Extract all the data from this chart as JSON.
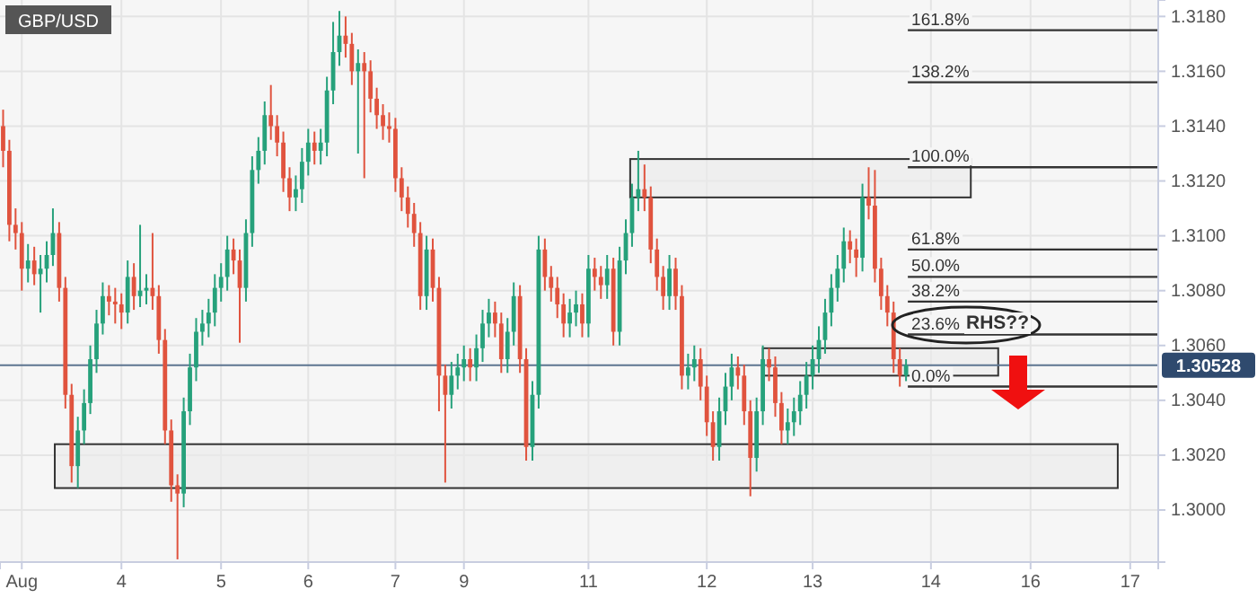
{
  "chart_data": {
    "type": "candlestick",
    "title": "GBP/USD",
    "annotations": [
      "161.8%",
      "138.2%",
      "100.0%",
      "61.8%",
      "50.0%",
      "38.2%",
      "23.6%",
      "0.0%",
      "RHS??"
    ],
    "categories": [
      null,
      null,
      null,
      "Aug",
      null,
      null,
      null,
      null,
      null,
      null,
      null,
      null,
      null,
      null,
      null,
      null,
      null,
      null,
      null,
      "4",
      null,
      null,
      null,
      null,
      null,
      null,
      null,
      null,
      null,
      null,
      null,
      null,
      null,
      null,
      null,
      "5",
      null,
      null,
      null,
      null,
      null,
      null,
      null,
      null,
      null,
      null,
      null,
      null,
      null,
      "6",
      null,
      null,
      null,
      null,
      null,
      null,
      null,
      null,
      null,
      null,
      null,
      null,
      null,
      "7",
      null,
      null,
      null,
      null,
      null,
      null,
      null,
      null,
      null,
      null,
      "9",
      null,
      null,
      null,
      null,
      null,
      null,
      null,
      null,
      null,
      null,
      null,
      null,
      null,
      null,
      null,
      null,
      null,
      null,
      null,
      "11",
      null,
      null,
      null,
      null,
      null,
      null,
      null,
      null,
      null,
      null,
      null,
      null,
      null,
      null,
      null,
      null,
      null,
      null,
      "12",
      null,
      null,
      null,
      null,
      null,
      null,
      null,
      null,
      null,
      null,
      null,
      null,
      null,
      null,
      null,
      null,
      "13",
      null,
      null,
      null,
      null,
      null,
      null,
      null,
      null,
      null,
      null,
      null,
      null,
      null,
      null,
      null,
      null,
      null,
      null,
      "14",
      null,
      null,
      null,
      null,
      null,
      null,
      null,
      null,
      null,
      null,
      null,
      null,
      null,
      null,
      null,
      "16",
      null,
      null,
      null,
      null,
      null,
      null,
      null,
      null,
      null,
      null,
      null,
      null,
      null,
      null,
      null,
      "17",
      null,
      null,
      null,
      null
    ],
    "ohlc": [
      [
        1.314,
        1.3146,
        1.3125,
        1.3131
      ],
      [
        1.3131,
        1.3135,
        1.3098,
        1.3104
      ],
      [
        1.3104,
        1.311,
        1.3095,
        1.3101
      ],
      [
        1.3101,
        1.3105,
        1.308,
        1.3088
      ],
      [
        1.3088,
        1.3097,
        1.3083,
        1.3091
      ],
      [
        1.3091,
        1.3096,
        1.3082,
        1.3086
      ],
      [
        1.3086,
        1.3093,
        1.3072,
        1.3088
      ],
      [
        1.3088,
        1.3098,
        1.3083,
        1.3093
      ],
      [
        1.3093,
        1.311,
        1.3089,
        1.3101
      ],
      [
        1.3101,
        1.3105,
        1.3076,
        1.3081
      ],
      [
        1.3081,
        1.3085,
        1.3037,
        1.3042
      ],
      [
        1.3042,
        1.3046,
        1.301,
        1.3016
      ],
      [
        1.3016,
        1.3034,
        1.3008,
        1.3029
      ],
      [
        1.3029,
        1.3044,
        1.3024,
        1.3039
      ],
      [
        1.3039,
        1.306,
        1.3035,
        1.3055
      ],
      [
        1.3055,
        1.3073,
        1.305,
        1.3068
      ],
      [
        1.3068,
        1.3083,
        1.3064,
        1.3078
      ],
      [
        1.3078,
        1.3082,
        1.3071,
        1.3076
      ],
      [
        1.3076,
        1.3081,
        1.3068,
        1.3075
      ],
      [
        1.3075,
        1.3079,
        1.3066,
        1.3072
      ],
      [
        1.3072,
        1.3091,
        1.3068,
        1.3085
      ],
      [
        1.3085,
        1.309,
        1.3073,
        1.3078
      ],
      [
        1.3078,
        1.3104,
        1.3074,
        1.308
      ],
      [
        1.308,
        1.3086,
        1.3075,
        1.3081
      ],
      [
        1.3081,
        1.3101,
        1.3073,
        1.3078
      ],
      [
        1.3078,
        1.3082,
        1.3057,
        1.3062
      ],
      [
        1.3062,
        1.3066,
        1.3024,
        1.3029
      ],
      [
        1.3029,
        1.3033,
        1.3003,
        1.3009
      ],
      [
        1.3009,
        1.3013,
        1.2982,
        1.3006
      ],
      [
        1.3006,
        1.3041,
        1.3001,
        1.3036
      ],
      [
        1.3036,
        1.3057,
        1.3031,
        1.3052
      ],
      [
        1.3052,
        1.307,
        1.3047,
        1.3065
      ],
      [
        1.3065,
        1.3073,
        1.306,
        1.3068
      ],
      [
        1.3068,
        1.3077,
        1.3063,
        1.3072
      ],
      [
        1.3072,
        1.3086,
        1.3067,
        1.3081
      ],
      [
        1.3081,
        1.309,
        1.3076,
        1.3085
      ],
      [
        1.3085,
        1.31,
        1.308,
        1.3095
      ],
      [
        1.3095,
        1.3099,
        1.3086,
        1.3091
      ],
      [
        1.3091,
        1.3095,
        1.3061,
        1.3081
      ],
      [
        1.3081,
        1.3106,
        1.3076,
        1.3101
      ],
      [
        1.3101,
        1.3129,
        1.3096,
        1.3124
      ],
      [
        1.3124,
        1.3136,
        1.3119,
        1.3131
      ],
      [
        1.3131,
        1.3149,
        1.3126,
        1.3144
      ],
      [
        1.3144,
        1.3155,
        1.3135,
        1.314
      ],
      [
        1.314,
        1.3144,
        1.3129,
        1.3134
      ],
      [
        1.3134,
        1.3138,
        1.3116,
        1.3121
      ],
      [
        1.3121,
        1.3125,
        1.3109,
        1.3114
      ],
      [
        1.3114,
        1.3122,
        1.3109,
        1.3117
      ],
      [
        1.3117,
        1.3132,
        1.3112,
        1.3127
      ],
      [
        1.3127,
        1.3139,
        1.3122,
        1.3134
      ],
      [
        1.3134,
        1.3138,
        1.3126,
        1.3131
      ],
      [
        1.3131,
        1.3139,
        1.3126,
        1.3134
      ],
      [
        1.3134,
        1.3158,
        1.3129,
        1.3153
      ],
      [
        1.3153,
        1.3178,
        1.3148,
        1.3167
      ],
      [
        1.3167,
        1.3182,
        1.3162,
        1.3173
      ],
      [
        1.3173,
        1.318,
        1.3165,
        1.317
      ],
      [
        1.317,
        1.3174,
        1.3155,
        1.316
      ],
      [
        1.316,
        1.3168,
        1.313,
        1.3163
      ],
      [
        1.3163,
        1.3167,
        1.3121,
        1.316
      ],
      [
        1.316,
        1.3164,
        1.3145,
        1.315
      ],
      [
        1.315,
        1.3154,
        1.3139,
        1.3144
      ],
      [
        1.3144,
        1.3148,
        1.3135,
        1.314
      ],
      [
        1.314,
        1.3145,
        1.3134,
        1.3139
      ],
      [
        1.3139,
        1.3143,
        1.3116,
        1.3121
      ],
      [
        1.3121,
        1.3125,
        1.3109,
        1.3114
      ],
      [
        1.3114,
        1.3118,
        1.3103,
        1.3108
      ],
      [
        1.3108,
        1.3112,
        1.3096,
        1.3101
      ],
      [
        1.3101,
        1.3105,
        1.3073,
        1.3078
      ],
      [
        1.3078,
        1.31,
        1.3073,
        1.3095
      ],
      [
        1.3095,
        1.3099,
        1.3076,
        1.3081
      ],
      [
        1.3081,
        1.3085,
        1.3036,
        1.3049
      ],
      [
        1.3049,
        1.3053,
        1.301,
        1.3042
      ],
      [
        1.3042,
        1.3054,
        1.3037,
        1.3049
      ],
      [
        1.3049,
        1.3057,
        1.3044,
        1.3052
      ],
      [
        1.3052,
        1.306,
        1.3047,
        1.3055
      ],
      [
        1.3055,
        1.3059,
        1.3047,
        1.3052
      ],
      [
        1.3052,
        1.3064,
        1.3047,
        1.3059
      ],
      [
        1.3059,
        1.3073,
        1.3054,
        1.3068
      ],
      [
        1.3068,
        1.3077,
        1.3063,
        1.3072
      ],
      [
        1.3072,
        1.3076,
        1.3063,
        1.3068
      ],
      [
        1.3068,
        1.3072,
        1.305,
        1.3055
      ],
      [
        1.3055,
        1.307,
        1.305,
        1.3065
      ],
      [
        1.3065,
        1.3083,
        1.306,
        1.3078
      ],
      [
        1.3078,
        1.3082,
        1.305,
        1.3055
      ],
      [
        1.3055,
        1.3059,
        1.3018,
        1.3023
      ],
      [
        1.3023,
        1.3047,
        1.3018,
        1.3042
      ],
      [
        1.3042,
        1.31,
        1.3037,
        1.3095
      ],
      [
        1.3095,
        1.3099,
        1.308,
        1.3085
      ],
      [
        1.3085,
        1.3089,
        1.3076,
        1.3081
      ],
      [
        1.3081,
        1.3085,
        1.307,
        1.3075
      ],
      [
        1.3075,
        1.3079,
        1.3063,
        1.3068
      ],
      [
        1.3068,
        1.3077,
        1.3063,
        1.3072
      ],
      [
        1.3072,
        1.308,
        1.3067,
        1.3075
      ],
      [
        1.3075,
        1.3079,
        1.3063,
        1.3068
      ],
      [
        1.3068,
        1.3093,
        1.3063,
        1.3088
      ],
      [
        1.3088,
        1.3092,
        1.308,
        1.3085
      ],
      [
        1.3085,
        1.3089,
        1.3077,
        1.3082
      ],
      [
        1.3082,
        1.3093,
        1.3077,
        1.3088
      ],
      [
        1.3088,
        1.3092,
        1.306,
        1.3065
      ],
      [
        1.3065,
        1.3096,
        1.306,
        1.3091
      ],
      [
        1.3091,
        1.3106,
        1.3086,
        1.3101
      ],
      [
        1.3101,
        1.3119,
        1.3096,
        1.3114
      ],
      [
        1.3114,
        1.3131,
        1.3109,
        1.3117
      ],
      [
        1.3117,
        1.3126,
        1.3109,
        1.3114
      ],
      [
        1.3114,
        1.3118,
        1.309,
        1.3095
      ],
      [
        1.3095,
        1.3099,
        1.308,
        1.3085
      ],
      [
        1.3085,
        1.3089,
        1.3073,
        1.3078
      ],
      [
        1.3078,
        1.3093,
        1.3073,
        1.3088
      ],
      [
        1.3088,
        1.3092,
        1.3073,
        1.3078
      ],
      [
        1.3078,
        1.3082,
        1.3044,
        1.3049
      ],
      [
        1.3049,
        1.3057,
        1.3044,
        1.3052
      ],
      [
        1.3052,
        1.306,
        1.3047,
        1.3055
      ],
      [
        1.3055,
        1.3059,
        1.304,
        1.3045
      ],
      [
        1.3045,
        1.3049,
        1.3027,
        1.3032
      ],
      [
        1.3032,
        1.3036,
        1.3018,
        1.3023
      ],
      [
        1.3023,
        1.3041,
        1.3018,
        1.3036
      ],
      [
        1.3036,
        1.305,
        1.3031,
        1.3045
      ],
      [
        1.3045,
        1.3057,
        1.304,
        1.3052
      ],
      [
        1.3052,
        1.3056,
        1.3044,
        1.3049
      ],
      [
        1.3049,
        1.3053,
        1.3031,
        1.3036
      ],
      [
        1.3036,
        1.304,
        1.3005,
        1.3019
      ],
      [
        1.3019,
        1.3041,
        1.3014,
        1.3036
      ],
      [
        1.3036,
        1.306,
        1.3031,
        1.3055
      ],
      [
        1.3055,
        1.3059,
        1.3047,
        1.3052
      ],
      [
        1.3052,
        1.3056,
        1.3034,
        1.3039
      ],
      [
        1.3039,
        1.3043,
        1.3024,
        1.3029
      ],
      [
        1.3029,
        1.3037,
        1.3024,
        1.3032
      ],
      [
        1.3032,
        1.3041,
        1.3027,
        1.3036
      ],
      [
        1.3036,
        1.3047,
        1.3031,
        1.3042
      ],
      [
        1.3042,
        1.3054,
        1.3037,
        1.3049
      ],
      [
        1.3049,
        1.306,
        1.3044,
        1.3055
      ],
      [
        1.3055,
        1.3067,
        1.305,
        1.3062
      ],
      [
        1.3062,
        1.3077,
        1.3057,
        1.3072
      ],
      [
        1.3072,
        1.3086,
        1.3067,
        1.3081
      ],
      [
        1.3081,
        1.3093,
        1.3076,
        1.3088
      ],
      [
        1.3088,
        1.3103,
        1.3083,
        1.3098
      ],
      [
        1.3098,
        1.3102,
        1.309,
        1.3095
      ],
      [
        1.3095,
        1.3099,
        1.3085,
        1.3092
      ],
      [
        1.3092,
        1.3119,
        1.3087,
        1.3114
      ],
      [
        1.3114,
        1.3125,
        1.3106,
        1.3111
      ],
      [
        1.3111,
        1.3124,
        1.3083,
        1.3088
      ],
      [
        1.3088,
        1.3092,
        1.3073,
        1.3078
      ],
      [
        1.3078,
        1.3082,
        1.3067,
        1.3072
      ],
      [
        1.3072,
        1.3076,
        1.305,
        1.3055
      ],
      [
        1.3055,
        1.3059,
        1.3045,
        1.3049
      ],
      [
        1.3049,
        1.3055,
        1.3047,
        1.30528
      ],
      null,
      null,
      null,
      null,
      null,
      null,
      null,
      null,
      null,
      null,
      null,
      null,
      null,
      null,
      null,
      null,
      null,
      null,
      null,
      null,
      null,
      null,
      null,
      null,
      null,
      null,
      null,
      null,
      null,
      null,
      null,
      null,
      null,
      null,
      null,
      null,
      null,
      null,
      null,
      null
    ],
    "ylim": [
      1.2981,
      1.3186
    ],
    "yticks": [
      {
        "value": 1.3,
        "label": "1.3000"
      },
      {
        "value": 1.302,
        "label": "1.3020"
      },
      {
        "value": 1.304,
        "label": "1.3040"
      },
      {
        "value": 1.306,
        "label": "1.3060"
      },
      {
        "value": 1.308,
        "label": "1.3080"
      },
      {
        "value": 1.31,
        "label": "1.3100"
      },
      {
        "value": 1.312,
        "label": "1.3120"
      },
      {
        "value": 1.314,
        "label": "1.3140"
      },
      {
        "value": 1.316,
        "label": "1.3160"
      },
      {
        "value": 1.318,
        "label": "1.3180"
      }
    ],
    "grid": true,
    "ref_lines": [
      {
        "axis": "y",
        "value": 1.30528,
        "label": "1.30528",
        "color": "#5d7591"
      },
      {
        "axis": "y",
        "value": 1.3175
      },
      {
        "axis": "y",
        "value": 1.3156
      },
      {
        "axis": "y",
        "value": 1.3125
      },
      {
        "axis": "y",
        "value": 1.3095
      },
      {
        "axis": "y",
        "value": 1.3085
      },
      {
        "axis": "y",
        "value": 1.3076
      },
      {
        "axis": "y",
        "value": 1.3064
      },
      {
        "axis": "y",
        "value": 1.3045
      }
    ],
    "bands": [
      {
        "axis": "y",
        "from": 1.3114,
        "to": 1.3128,
        "color": "#ebebeb"
      },
      {
        "axis": "y",
        "from": 1.3049,
        "to": 1.3059,
        "color": "#ebebeb"
      },
      {
        "axis": "y",
        "from": 1.3008,
        "to": 1.3024,
        "color": "#ebebeb"
      }
    ]
  }
}
